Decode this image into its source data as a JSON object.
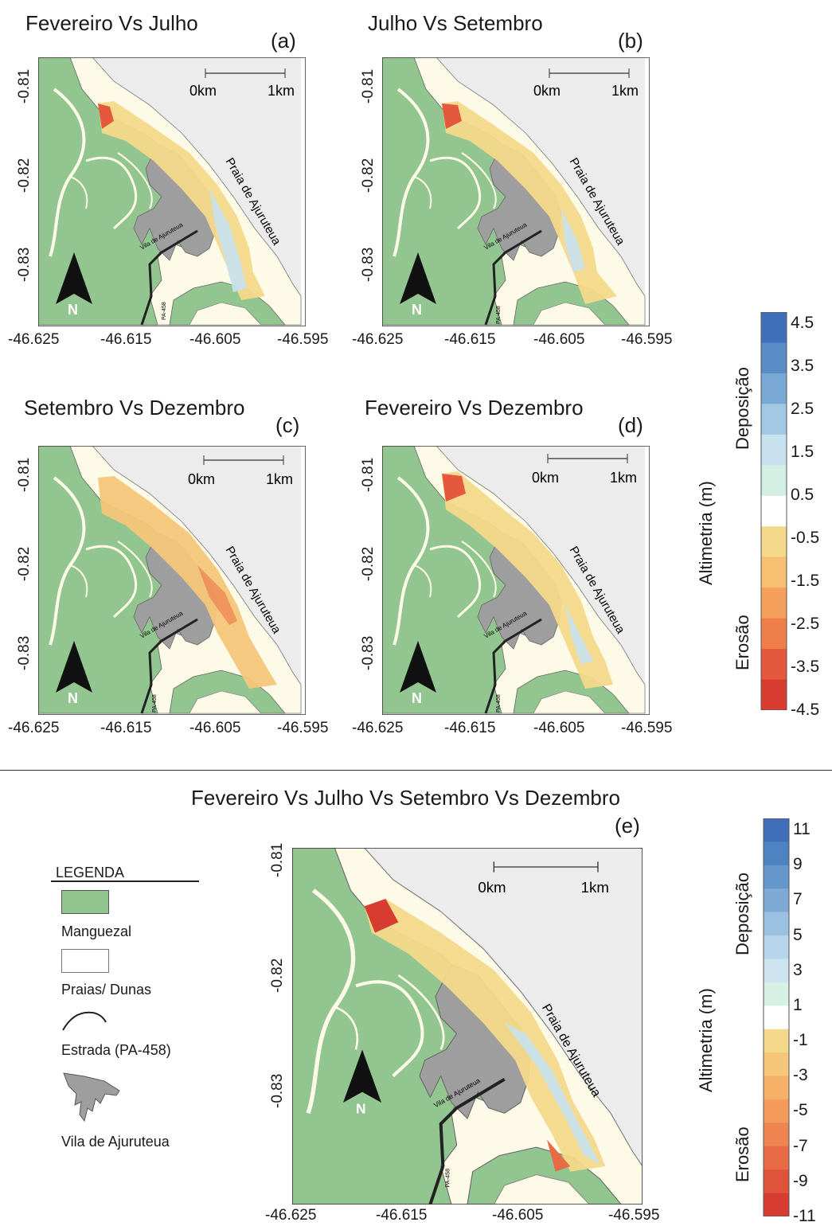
{
  "panels": [
    {
      "title": "Fevereiro Vs Julho",
      "label": "(a)"
    },
    {
      "title": "Julho Vs Setembro",
      "label": "(b)"
    },
    {
      "title": "Setembro Vs Dezembro",
      "label": "(c)"
    },
    {
      "title": "Fevereiro Vs Dezembro",
      "label": "(d)"
    }
  ],
  "panel_e": {
    "title": "Fevereiro Vs Julho Vs Setembro Vs Dezembro",
    "label": "(e)"
  },
  "axes": {
    "x_ticks": [
      "-46.625",
      "-46.615",
      "-46.605",
      "-46.595"
    ],
    "y_ticks": [
      "-0.81",
      "-0.82",
      "-0.83"
    ]
  },
  "map_text": {
    "scale_start": "0km",
    "scale_end": "1km",
    "beach": "Praia de Ajuruteua",
    "village": "Vila de Ajuruteua",
    "road": "PA-458",
    "north": "N"
  },
  "colorbar_top": {
    "title": "Altimetria (m)",
    "deposition": "Deposição",
    "erosion": "Erosão",
    "ticks": [
      "4.5",
      "3.5",
      "2.5",
      "1.5",
      "0.5",
      "-0.5",
      "-1.5",
      "-2.5",
      "-3.5",
      "-4.5"
    ],
    "colors": [
      "#3e6fb8",
      "#5a8cc6",
      "#7aa8d5",
      "#a2c8e4",
      "#c7e1ee",
      "#d3efe3",
      "#ffffff",
      "#f4d98a",
      "#f6bf72",
      "#f49f5c",
      "#ee7f4b",
      "#e4583d",
      "#d83c30"
    ]
  },
  "colorbar_bottom": {
    "title": "Altimetria (m)",
    "deposition": "Deposição",
    "erosion": "Erosão",
    "ticks": [
      "11",
      "9",
      "7",
      "5",
      "3",
      "1",
      "-1",
      "-3",
      "-5",
      "-7",
      "-9",
      "-11"
    ],
    "colors": [
      "#3e6fb8",
      "#4f82c1",
      "#6697cb",
      "#7eaad5",
      "#9bc1e1",
      "#b6d4ea",
      "#cde4f0",
      "#d6f0e6",
      "#ffffff",
      "#f4d98a",
      "#f6c67a",
      "#f6b068",
      "#f49a5a",
      "#ef8450",
      "#e86b45",
      "#df533a",
      "#d63c30"
    ]
  },
  "legend": {
    "title": "LEGENDA",
    "items": [
      {
        "label": "Manguezal"
      },
      {
        "label": "Praias/ Dunas"
      },
      {
        "label": "Estrada (PA-458)"
      },
      {
        "label": "Vila de Ajuruteua"
      }
    ]
  },
  "colors": {
    "mangrove": "#92c58f",
    "beach": "#fdfbe8",
    "sea": "#ececec",
    "village": "#9e9e9e",
    "road": "#222222"
  }
}
